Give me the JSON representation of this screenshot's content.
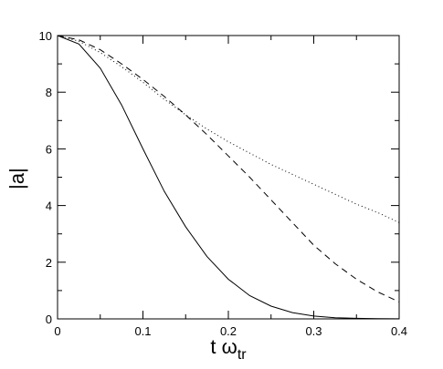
{
  "chart_data": {
    "type": "line",
    "title": "",
    "xlabel": {
      "main": "t ω",
      "sub": "tr"
    },
    "ylabel": "|a|",
    "xlim": [
      0,
      0.4
    ],
    "ylim": [
      0,
      10
    ],
    "x_ticks": [
      0,
      0.1,
      0.2,
      0.3,
      0.4
    ],
    "x_tick_labels": [
      "0",
      "0.1",
      "0.2",
      "0.3",
      "0.4"
    ],
    "y_ticks": [
      0,
      2,
      4,
      6,
      8,
      10
    ],
    "y_tick_labels": [
      "0",
      "2",
      "4",
      "6",
      "8",
      "10"
    ],
    "grid": false,
    "legend": "none",
    "series": [
      {
        "style": "solid",
        "x": [
          0,
          0.025,
          0.05,
          0.075,
          0.1,
          0.125,
          0.15,
          0.175,
          0.2,
          0.225,
          0.25,
          0.275,
          0.3,
          0.325,
          0.35,
          0.375,
          0.4
        ],
        "values": [
          10,
          9.7,
          8.85,
          7.55,
          6.0,
          4.5,
          3.25,
          2.2,
          1.4,
          0.82,
          0.45,
          0.22,
          0.1,
          0.04,
          0.02,
          0.01,
          0.005
        ]
      },
      {
        "style": "dashed",
        "x": [
          0,
          0.025,
          0.05,
          0.075,
          0.1,
          0.125,
          0.15,
          0.175,
          0.2,
          0.225,
          0.25,
          0.275,
          0.3,
          0.325,
          0.35,
          0.375,
          0.4
        ],
        "values": [
          10,
          9.85,
          9.5,
          9.0,
          8.45,
          7.85,
          7.2,
          6.5,
          5.75,
          5.0,
          4.2,
          3.4,
          2.6,
          1.95,
          1.4,
          0.95,
          0.6
        ]
      },
      {
        "style": "dotted",
        "x": [
          0,
          0.025,
          0.05,
          0.075,
          0.1,
          0.125,
          0.15,
          0.175,
          0.2,
          0.225,
          0.25,
          0.275,
          0.3,
          0.325,
          0.35,
          0.375,
          0.4
        ],
        "values": [
          10,
          9.8,
          9.4,
          8.9,
          8.35,
          7.75,
          7.2,
          6.7,
          6.25,
          5.85,
          5.45,
          5.1,
          4.75,
          4.4,
          4.05,
          3.75,
          3.4
        ]
      }
    ]
  }
}
